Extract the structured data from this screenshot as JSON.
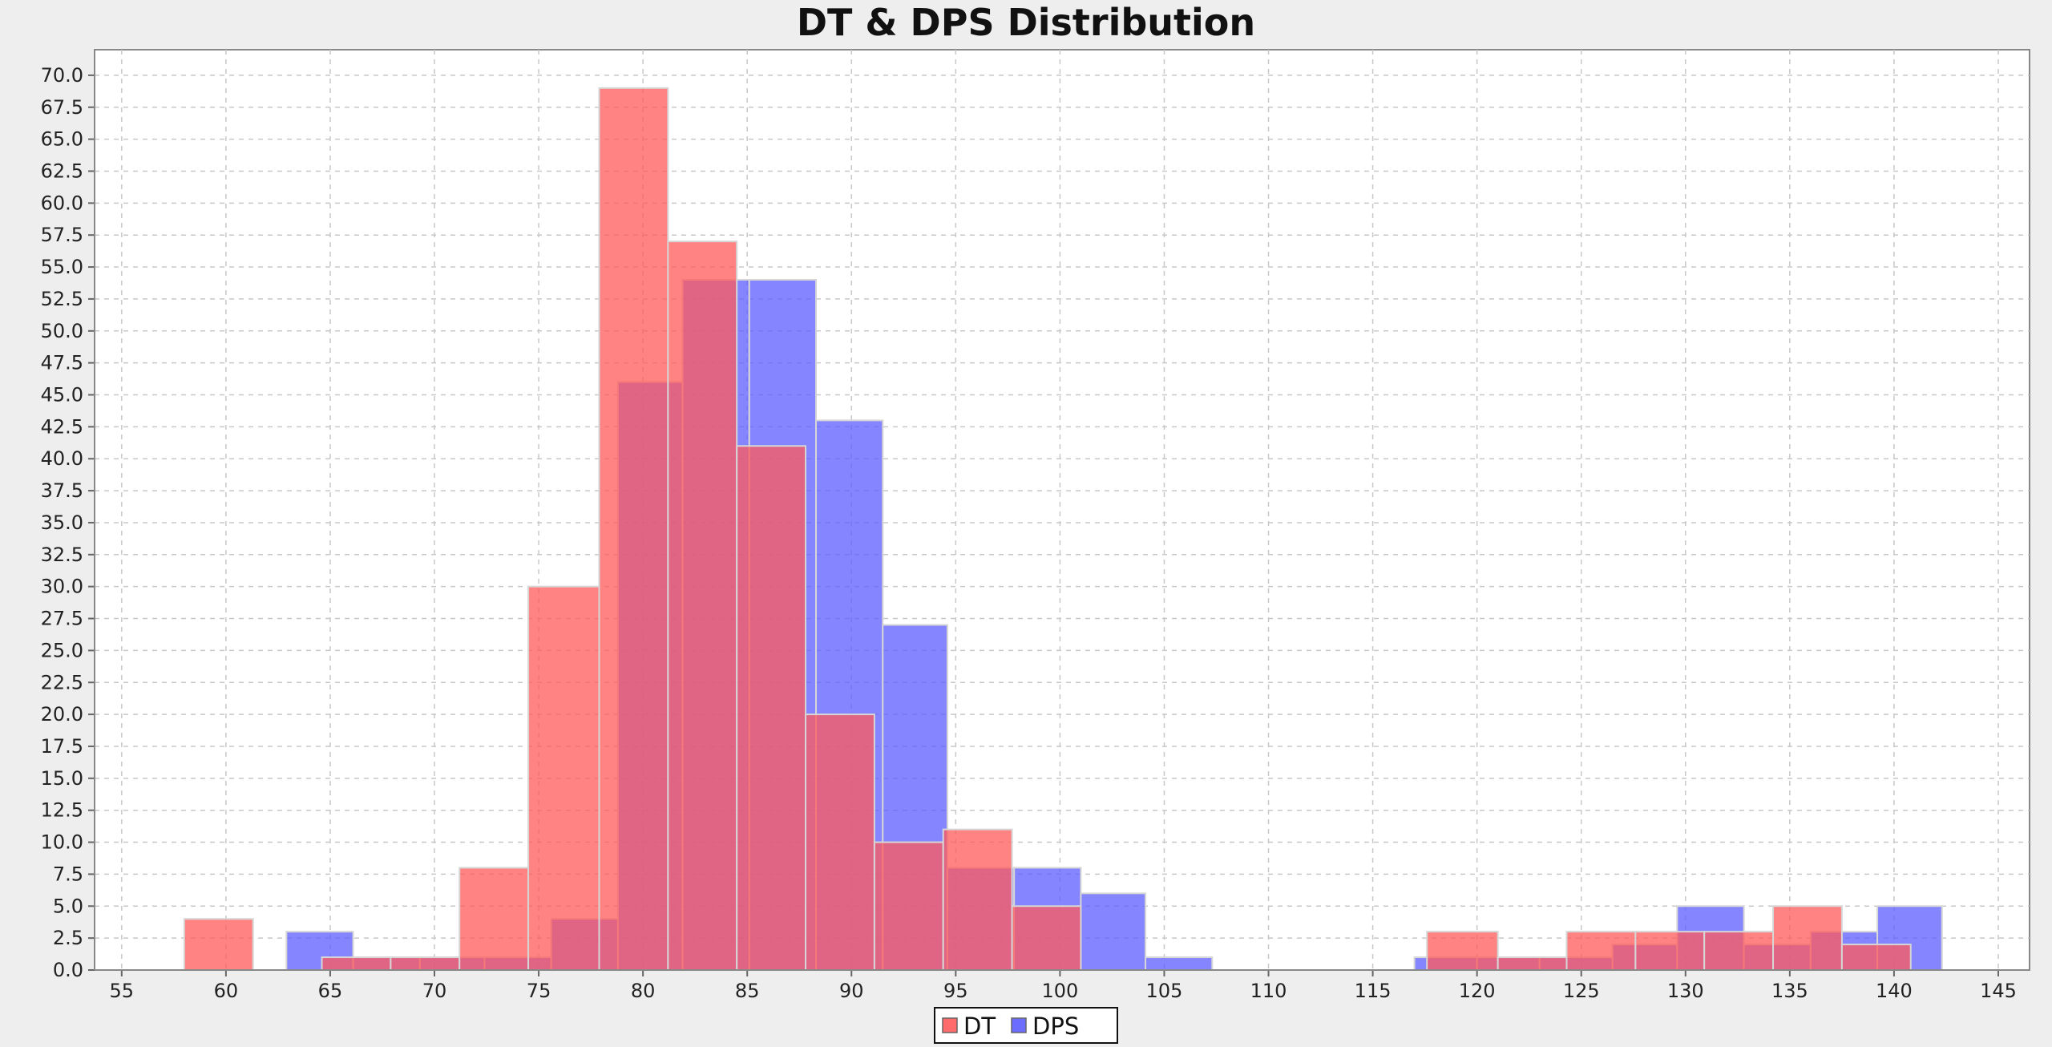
{
  "chart_data": {
    "type": "bar",
    "title": "DT & DPS Distribution",
    "xlabel": "",
    "ylabel": "",
    "xlim": [
      53.7,
      146.5
    ],
    "ylim": [
      0,
      72
    ],
    "x_ticks": [
      55,
      60,
      65,
      70,
      75,
      80,
      85,
      90,
      95,
      100,
      105,
      110,
      115,
      120,
      125,
      130,
      135,
      140,
      145
    ],
    "y_ticks": [
      0,
      2.5,
      5,
      7.5,
      10,
      12.5,
      15,
      17.5,
      20,
      22.5,
      25,
      27.5,
      30,
      32.5,
      35,
      37.5,
      40,
      42.5,
      45,
      47.5,
      50,
      52.5,
      55,
      57.5,
      60,
      62.5,
      65,
      67.5,
      70
    ],
    "y_tick_decimals": 1,
    "grid": true,
    "legend_position": "bottom-center",
    "series": [
      {
        "name": "DPS",
        "color": "#5c5cff",
        "bins": [
          {
            "x0": 62.9,
            "x1": 66.1,
            "count": 3
          },
          {
            "x0": 66.1,
            "x1": 69.3,
            "count": 1
          },
          {
            "x0": 69.3,
            "x1": 72.4,
            "count": 1
          },
          {
            "x0": 72.4,
            "x1": 75.6,
            "count": 1
          },
          {
            "x0": 75.6,
            "x1": 78.8,
            "count": 4
          },
          {
            "x0": 78.8,
            "x1": 81.9,
            "count": 46
          },
          {
            "x0": 81.9,
            "x1": 85.1,
            "count": 54
          },
          {
            "x0": 85.1,
            "x1": 88.3,
            "count": 54
          },
          {
            "x0": 88.3,
            "x1": 91.5,
            "count": 43
          },
          {
            "x0": 91.5,
            "x1": 94.6,
            "count": 27
          },
          {
            "x0": 94.6,
            "x1": 97.8,
            "count": 8
          },
          {
            "x0": 97.8,
            "x1": 101.0,
            "count": 8
          },
          {
            "x0": 101.0,
            "x1": 104.1,
            "count": 6
          },
          {
            "x0": 104.1,
            "x1": 107.3,
            "count": 1
          },
          {
            "x0": 117.0,
            "x1": 120.0,
            "count": 1
          },
          {
            "x0": 120.0,
            "x1": 123.0,
            "count": 1
          },
          {
            "x0": 123.0,
            "x1": 126.5,
            "count": 1
          },
          {
            "x0": 126.5,
            "x1": 129.6,
            "count": 2
          },
          {
            "x0": 129.6,
            "x1": 132.8,
            "count": 5
          },
          {
            "x0": 132.8,
            "x1": 136.0,
            "count": 2
          },
          {
            "x0": 136.0,
            "x1": 139.2,
            "count": 3
          },
          {
            "x0": 139.2,
            "x1": 142.3,
            "count": 5
          }
        ]
      },
      {
        "name": "DT",
        "color": "#ff5a5a",
        "bins": [
          {
            "x0": 58.0,
            "x1": 61.3,
            "count": 4
          },
          {
            "x0": 64.6,
            "x1": 67.9,
            "count": 1
          },
          {
            "x0": 67.9,
            "x1": 71.2,
            "count": 1
          },
          {
            "x0": 71.2,
            "x1": 74.5,
            "count": 8
          },
          {
            "x0": 74.5,
            "x1": 77.9,
            "count": 30
          },
          {
            "x0": 77.9,
            "x1": 81.2,
            "count": 69
          },
          {
            "x0": 81.2,
            "x1": 84.5,
            "count": 57
          },
          {
            "x0": 84.5,
            "x1": 87.8,
            "count": 41
          },
          {
            "x0": 87.8,
            "x1": 91.1,
            "count": 20
          },
          {
            "x0": 91.1,
            "x1": 94.4,
            "count": 10
          },
          {
            "x0": 94.4,
            "x1": 97.7,
            "count": 11
          },
          {
            "x0": 97.7,
            "x1": 101.0,
            "count": 5
          },
          {
            "x0": 117.6,
            "x1": 121.0,
            "count": 3
          },
          {
            "x0": 121.0,
            "x1": 124.3,
            "count": 1
          },
          {
            "x0": 124.3,
            "x1": 127.6,
            "count": 3
          },
          {
            "x0": 127.6,
            "x1": 130.9,
            "count": 3
          },
          {
            "x0": 130.9,
            "x1": 134.2,
            "count": 3
          },
          {
            "x0": 134.2,
            "x1": 137.5,
            "count": 5
          },
          {
            "x0": 137.5,
            "x1": 140.8,
            "count": 2
          }
        ]
      }
    ],
    "legend_order": [
      "DT",
      "DPS"
    ]
  }
}
